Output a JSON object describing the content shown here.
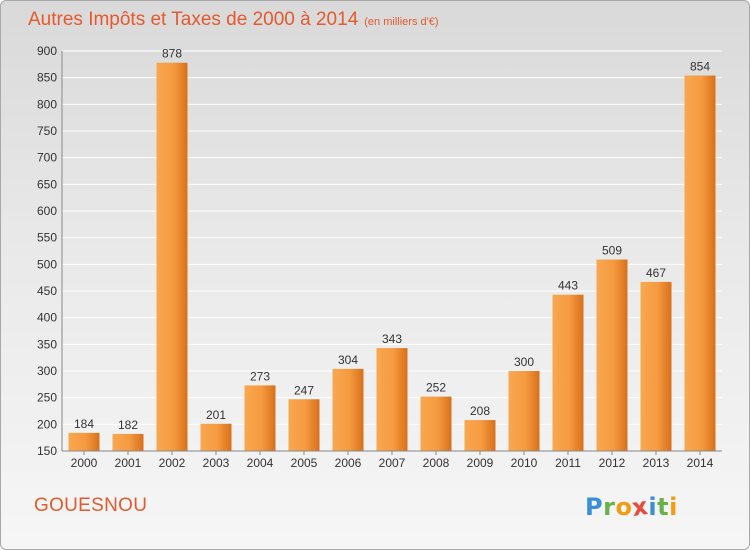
{
  "title": "Autres Impôts et Taxes de 2000 à 2014",
  "subtitle": "(en milliers d'€)",
  "commune": "GOUESNOU",
  "logo": {
    "letters": [
      "P",
      "r",
      "o",
      "x",
      "i",
      "t",
      "i"
    ],
    "colors": [
      "#3c8fd6",
      "#6ab04c",
      "#f39c12",
      "#e74c3c",
      "#3c8fd6",
      "#6ab04c",
      "#f39c12"
    ]
  },
  "colors": {
    "bar_light": "#f8a850",
    "bar_dark": "#d8701a",
    "title": "#e35a2e"
  },
  "chart_data": {
    "type": "bar",
    "title": "Autres Impôts et Taxes de 2000 à 2014",
    "subtitle": "(en milliers d'€)",
    "categories": [
      "2000",
      "2001",
      "2002",
      "2003",
      "2004",
      "2005",
      "2006",
      "2007",
      "2008",
      "2009",
      "2010",
      "2011",
      "2012",
      "2013",
      "2014"
    ],
    "values": [
      184,
      182,
      878,
      201,
      273,
      247,
      304,
      343,
      252,
      208,
      300,
      443,
      509,
      467,
      854
    ],
    "ylim": [
      150,
      900
    ],
    "yticks": [
      150,
      200,
      250,
      300,
      350,
      400,
      450,
      500,
      550,
      600,
      650,
      700,
      750,
      800,
      850,
      900
    ],
    "grid": true,
    "data_labels": true
  }
}
